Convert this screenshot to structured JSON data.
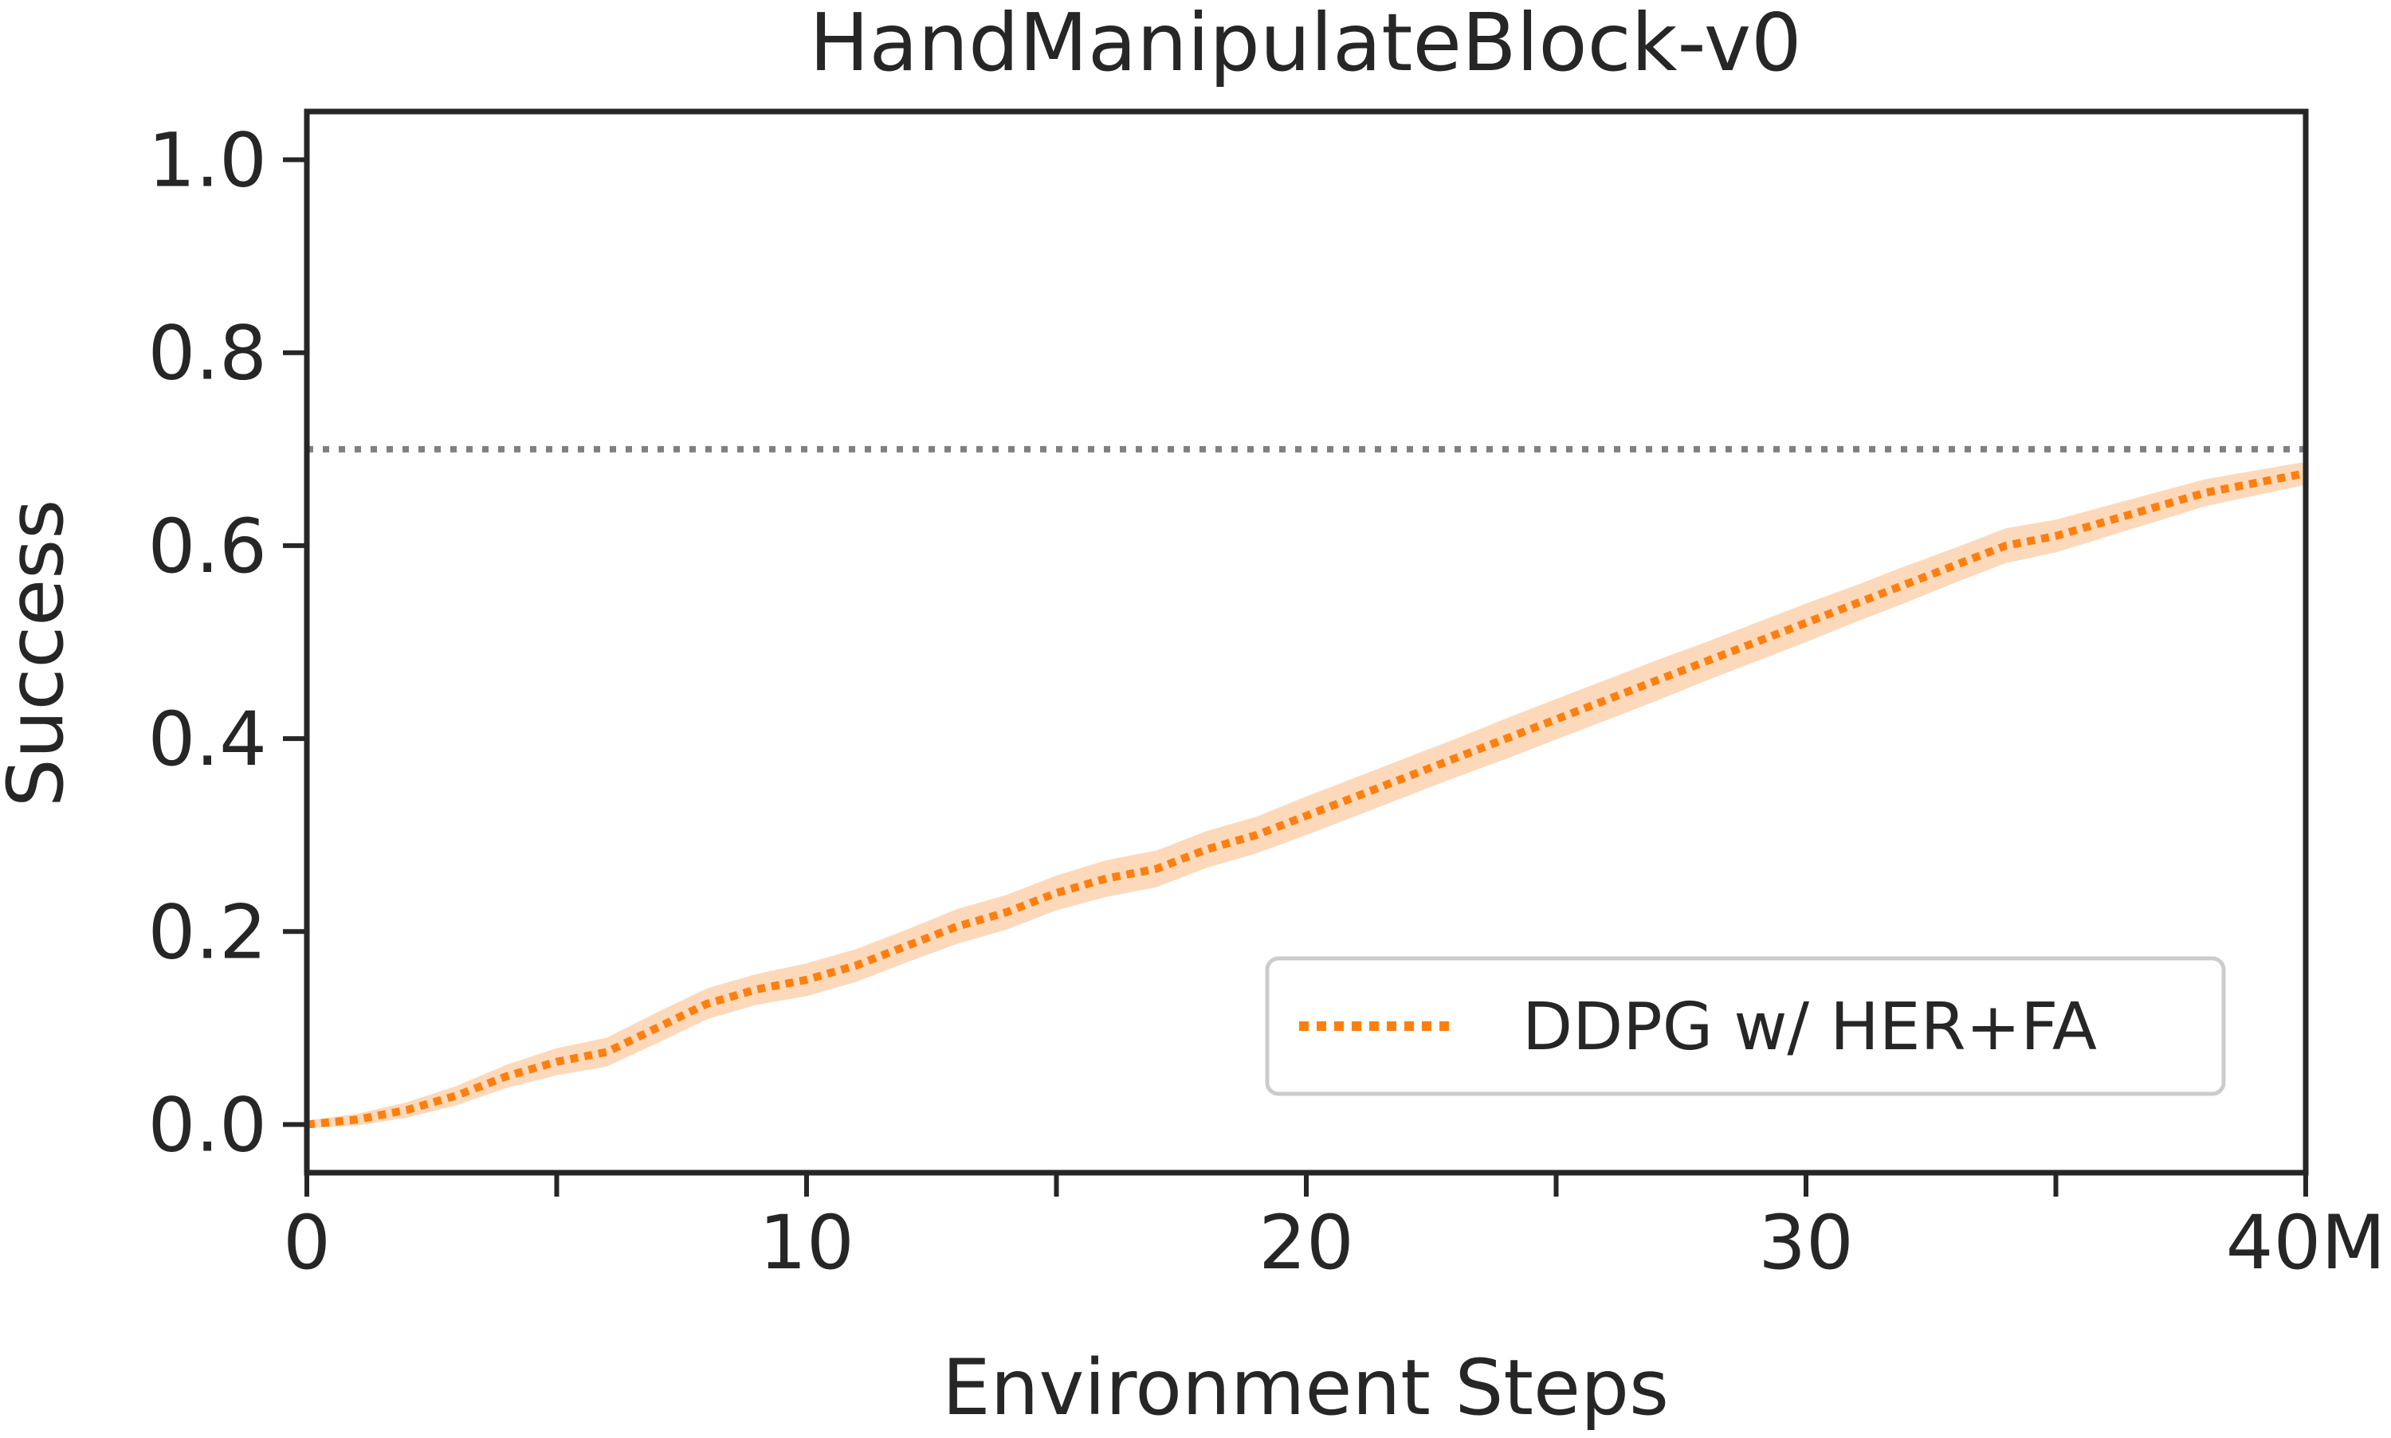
{
  "chart_data": {
    "type": "line",
    "title": "HandManipulateBlock-v0",
    "xlabel": "Environment Steps",
    "ylabel": "Success",
    "xlim": [
      0,
      40
    ],
    "ylim": [
      -0.05,
      1.05
    ],
    "x_ticks": [
      0,
      5,
      10,
      15,
      20,
      25,
      30,
      35,
      40
    ],
    "x_tick_labels": [
      "0",
      "",
      "10",
      "",
      "20",
      "",
      "30",
      "",
      "40M"
    ],
    "y_ticks": [
      0.0,
      0.2,
      0.4,
      0.6,
      0.8,
      1.0
    ],
    "y_tick_labels": [
      "0.0",
      "0.2",
      "0.4",
      "0.6",
      "0.8",
      "1.0"
    ],
    "grid": false,
    "legend_position": "lower-right",
    "reference_line": {
      "y": 0.7,
      "style": "dotted",
      "color": "#808080"
    },
    "series": [
      {
        "name": "DDPG w/ HER+FA",
        "color": "#ff7f0e",
        "band_color": "#fdd9bc",
        "line_style": "dotted",
        "x": [
          0,
          1,
          2,
          3,
          4,
          5,
          6,
          7,
          8,
          9,
          10,
          11,
          12,
          13,
          14,
          15,
          16,
          17,
          18,
          19,
          20,
          21,
          22,
          23,
          24,
          25,
          26,
          27,
          28,
          29,
          30,
          31,
          32,
          33,
          34,
          35,
          36,
          37,
          38,
          39,
          40
        ],
        "y": [
          0.0,
          0.005,
          0.015,
          0.03,
          0.05,
          0.065,
          0.075,
          0.1,
          0.125,
          0.14,
          0.15,
          0.165,
          0.185,
          0.205,
          0.22,
          0.24,
          0.255,
          0.265,
          0.285,
          0.3,
          0.32,
          0.34,
          0.36,
          0.38,
          0.4,
          0.42,
          0.44,
          0.46,
          0.48,
          0.5,
          0.52,
          0.54,
          0.56,
          0.58,
          0.6,
          0.61,
          0.625,
          0.64,
          0.655,
          0.665,
          0.675
        ],
        "band": [
          0.004,
          0.006,
          0.008,
          0.01,
          0.012,
          0.014,
          0.015,
          0.016,
          0.016,
          0.016,
          0.017,
          0.017,
          0.017,
          0.018,
          0.018,
          0.018,
          0.019,
          0.019,
          0.019,
          0.019,
          0.02,
          0.02,
          0.02,
          0.02,
          0.021,
          0.021,
          0.021,
          0.021,
          0.02,
          0.02,
          0.02,
          0.019,
          0.019,
          0.018,
          0.018,
          0.017,
          0.016,
          0.015,
          0.014,
          0.013,
          0.012
        ]
      }
    ]
  }
}
